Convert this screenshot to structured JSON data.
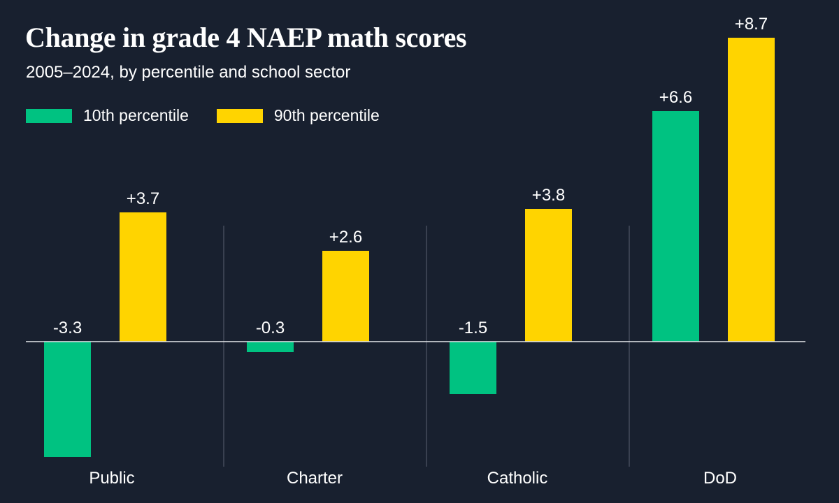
{
  "chart_data": {
    "type": "bar",
    "title": "Change in grade 4 NAEP math scores",
    "subtitle": "2005–2024, by percentile and school sector",
    "categories": [
      "Public",
      "Charter",
      "Catholic",
      "DoD"
    ],
    "series": [
      {
        "name": "10th percentile",
        "color": "#00c281",
        "values": [
          -3.3,
          -0.3,
          -1.5,
          6.6
        ],
        "labels": [
          "-3.3",
          "-0.3",
          "-1.5",
          "+6.6"
        ]
      },
      {
        "name": "90th percentile",
        "color": "#ffd400",
        "values": [
          3.7,
          2.6,
          3.8,
          8.7
        ],
        "labels": [
          "+3.7",
          "+2.6",
          "+3.8",
          "+8.7"
        ]
      }
    ],
    "xlabel": "",
    "ylabel": "",
    "ylim": [
      -3.6,
      9.0
    ],
    "grid": false,
    "legend": "top-left"
  }
}
